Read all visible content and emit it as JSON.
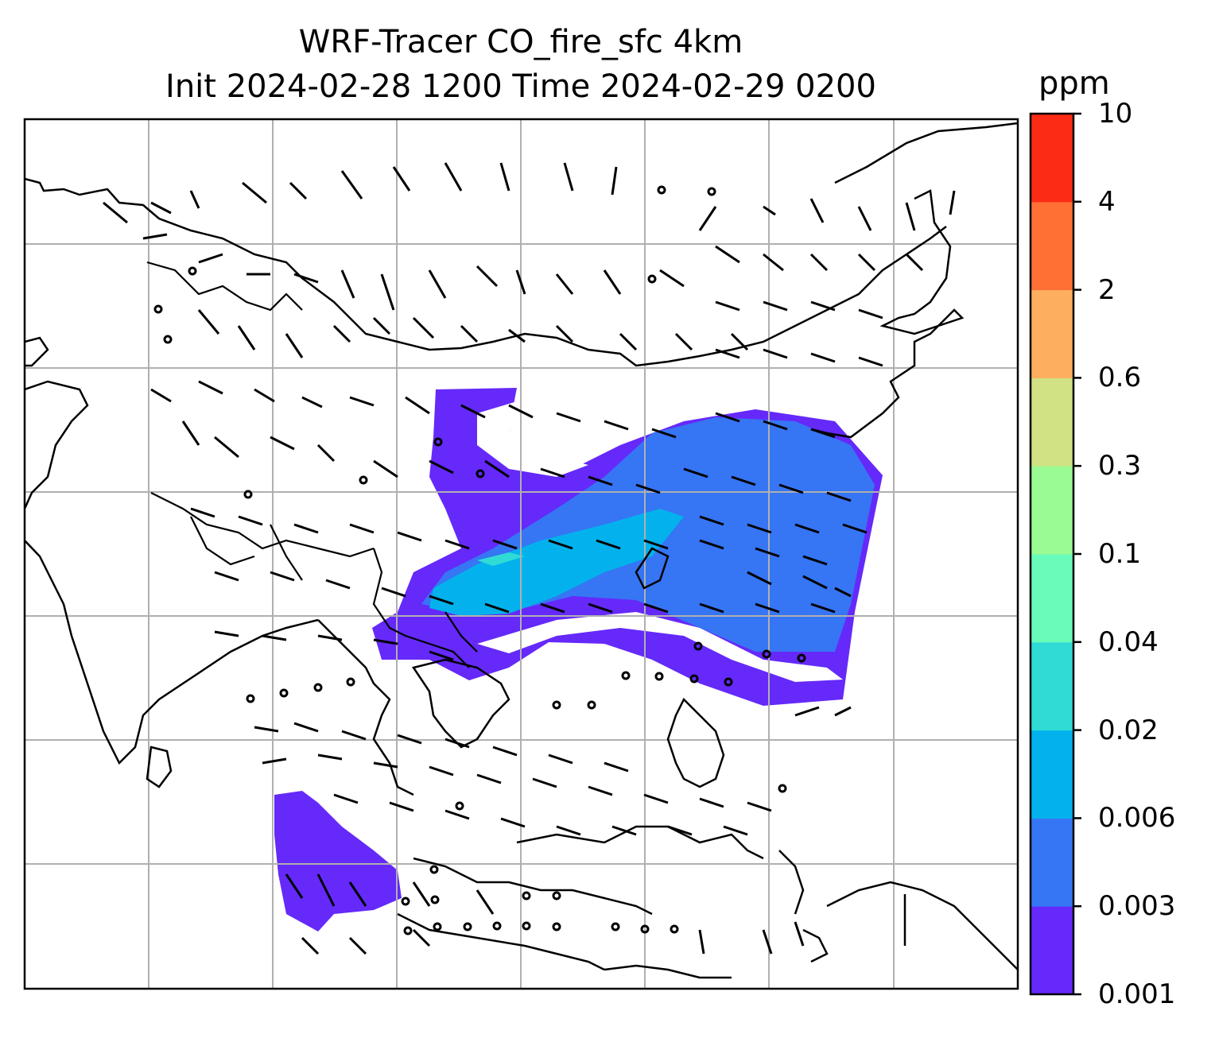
{
  "title": {
    "line1": "WRF-Tracer CO_fire_sfc 4km",
    "line2": "Init 2024-02-28 1200 Time 2024-02-29 0200"
  },
  "colorbar": {
    "unit": "ppm",
    "levels": [
      "0.001",
      "0.003",
      "0.006",
      "0.02",
      "0.04",
      "0.1",
      "0.3",
      "0.6",
      "2",
      "4",
      "10"
    ],
    "colors": [
      "#6529fa",
      "#3675f4",
      "#03b2ec",
      "#30dbd6",
      "#69fbba",
      "#9afb94",
      "#d0e283",
      "#fdaf5f",
      "#ff7035",
      "#fc2b15"
    ]
  },
  "map": {
    "gridlines": true,
    "features": [
      "coastlines",
      "country-borders",
      "wind-barbs",
      "calm-circles"
    ]
  }
}
